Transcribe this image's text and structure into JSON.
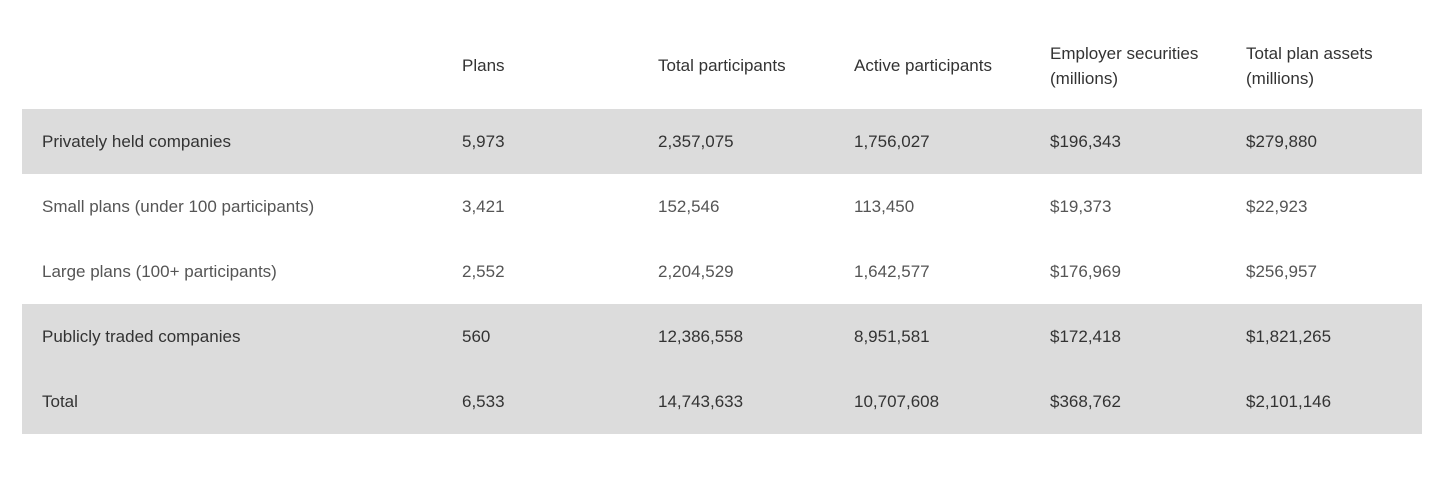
{
  "table": {
    "columns": [
      "",
      "Plans",
      "Total participants",
      "Active participants",
      "Employer securities (millions)",
      "Total plan assets (millions)"
    ],
    "rows": [
      {
        "label": "Privately held companies",
        "style": "shaded",
        "cells": [
          "5,973",
          "2,357,075",
          "1,756,027",
          "$196,343",
          "$279,880"
        ]
      },
      {
        "label": "Small plans (under 100 participants)",
        "style": "plain",
        "cells": [
          "3,421",
          "152,546",
          "113,450",
          "$19,373",
          "$22,923"
        ]
      },
      {
        "label": "Large plans (100+ participants)",
        "style": "plain",
        "cells": [
          "2,552",
          "2,204,529",
          "1,642,577",
          "$176,969",
          "$256,957"
        ]
      },
      {
        "label": "Publicly traded companies",
        "style": "shaded",
        "cells": [
          "560",
          "12,386,558",
          "8,951,581",
          "$172,418",
          "$1,821,265"
        ]
      },
      {
        "label": "Total",
        "style": "shaded",
        "cells": [
          "6,533",
          "14,743,633",
          "10,707,608",
          "$368,762",
          "$2,101,146"
        ]
      }
    ]
  },
  "colors": {
    "shaded_row": "#dcdcdc",
    "text": "#333333"
  }
}
